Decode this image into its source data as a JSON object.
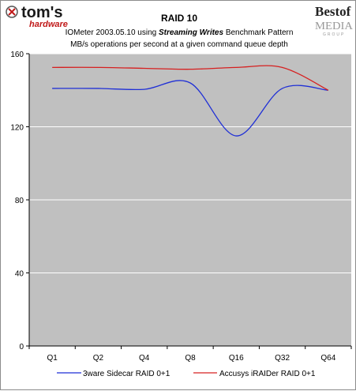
{
  "header": {
    "left_logo_text": "tom's",
    "left_logo_subtext": "hardware",
    "right_logo_text": "Bestof",
    "right_logo_subtext": "MEDIA",
    "right_logo_group": "GROUP"
  },
  "colors": {
    "series1": "#1f2fd6",
    "series2": "#d62020",
    "plot_bg": "#c0c0c0",
    "grid": "#ffffff",
    "axis": "#000000"
  },
  "chart_data": {
    "type": "line",
    "title": "RAID 10",
    "subtitle_parts": [
      "IOMeter 2003.05.10 using ",
      "Streaming Writes",
      " Benchmark Pattern"
    ],
    "subtitle2": "MB/s operations per second at a given command queue depth",
    "categories": [
      "Q1",
      "Q2",
      "Q4",
      "Q8",
      "Q16",
      "Q32",
      "Q64"
    ],
    "ylim": [
      0,
      160
    ],
    "yticks": [
      0,
      40,
      80,
      120,
      160
    ],
    "grid": true,
    "legend_position": "bottom",
    "series": [
      {
        "name": "3ware Sidecar RAID 0+1",
        "values": [
          141,
          141,
          140.5,
          144,
          115,
          141,
          140
        ]
      },
      {
        "name": "Accusys iRAIDer RAID 0+1",
        "values": [
          152.5,
          152.5,
          152,
          151.5,
          152.5,
          152.5,
          140
        ]
      }
    ]
  }
}
